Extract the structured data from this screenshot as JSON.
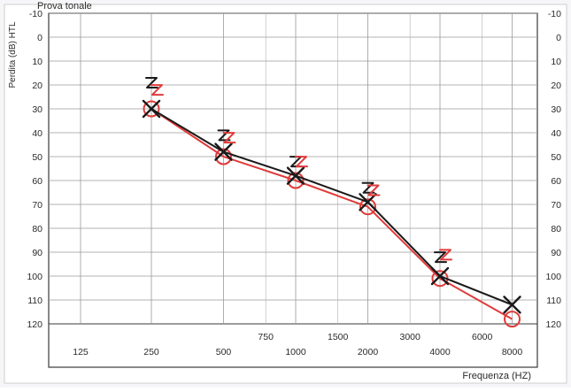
{
  "chart_data": {
    "type": "line",
    "title": "Prova tonale",
    "ylabel": "Perdita (dB) HTL",
    "xlabel": "Frequenza (HZ)",
    "y_reversed": true,
    "ylim": [
      -10,
      120
    ],
    "y_ticks": [
      "-10",
      "0",
      "10",
      "20",
      "30",
      "40",
      "50",
      "60",
      "70",
      "80",
      "90",
      "100",
      "110",
      "120"
    ],
    "x_main_ticks": [
      "125",
      "250",
      "500",
      "1000",
      "2000",
      "4000",
      "8000"
    ],
    "x_inter_ticks": [
      "750",
      "1500",
      "3000",
      "6000"
    ],
    "grid": true,
    "series": [
      {
        "color": "#e03a3a",
        "marker": "circle",
        "x": [
          250,
          500,
          1000,
          2000,
          4000,
          8000
        ],
        "y": [
          30,
          50,
          60,
          71,
          101,
          118
        ]
      },
      {
        "color": "#1a1a1a",
        "marker": "cross",
        "x": [
          250,
          500,
          1000,
          2000,
          4000,
          8000
        ],
        "y": [
          30,
          48,
          58,
          69,
          100,
          112
        ]
      }
    ],
    "masking_marks": [
      {
        "color": "#1a1a1a",
        "x": 250,
        "y": 20
      },
      {
        "color": "#e03a3a",
        "x": 250,
        "y": 23
      },
      {
        "color": "#1a1a1a",
        "x": 500,
        "y": 42
      },
      {
        "color": "#e03a3a",
        "x": 500,
        "y": 43
      },
      {
        "color": "#1a1a1a",
        "x": 1000,
        "y": 53
      },
      {
        "color": "#e03a3a",
        "x": 1000,
        "y": 53
      },
      {
        "color": "#1a1a1a",
        "x": 2000,
        "y": 64
      },
      {
        "color": "#e03a3a",
        "x": 2000,
        "y": 65
      },
      {
        "color": "#1a1a1a",
        "x": 4000,
        "y": 93
      },
      {
        "color": "#e03a3a",
        "x": 4000,
        "y": 92
      }
    ]
  }
}
